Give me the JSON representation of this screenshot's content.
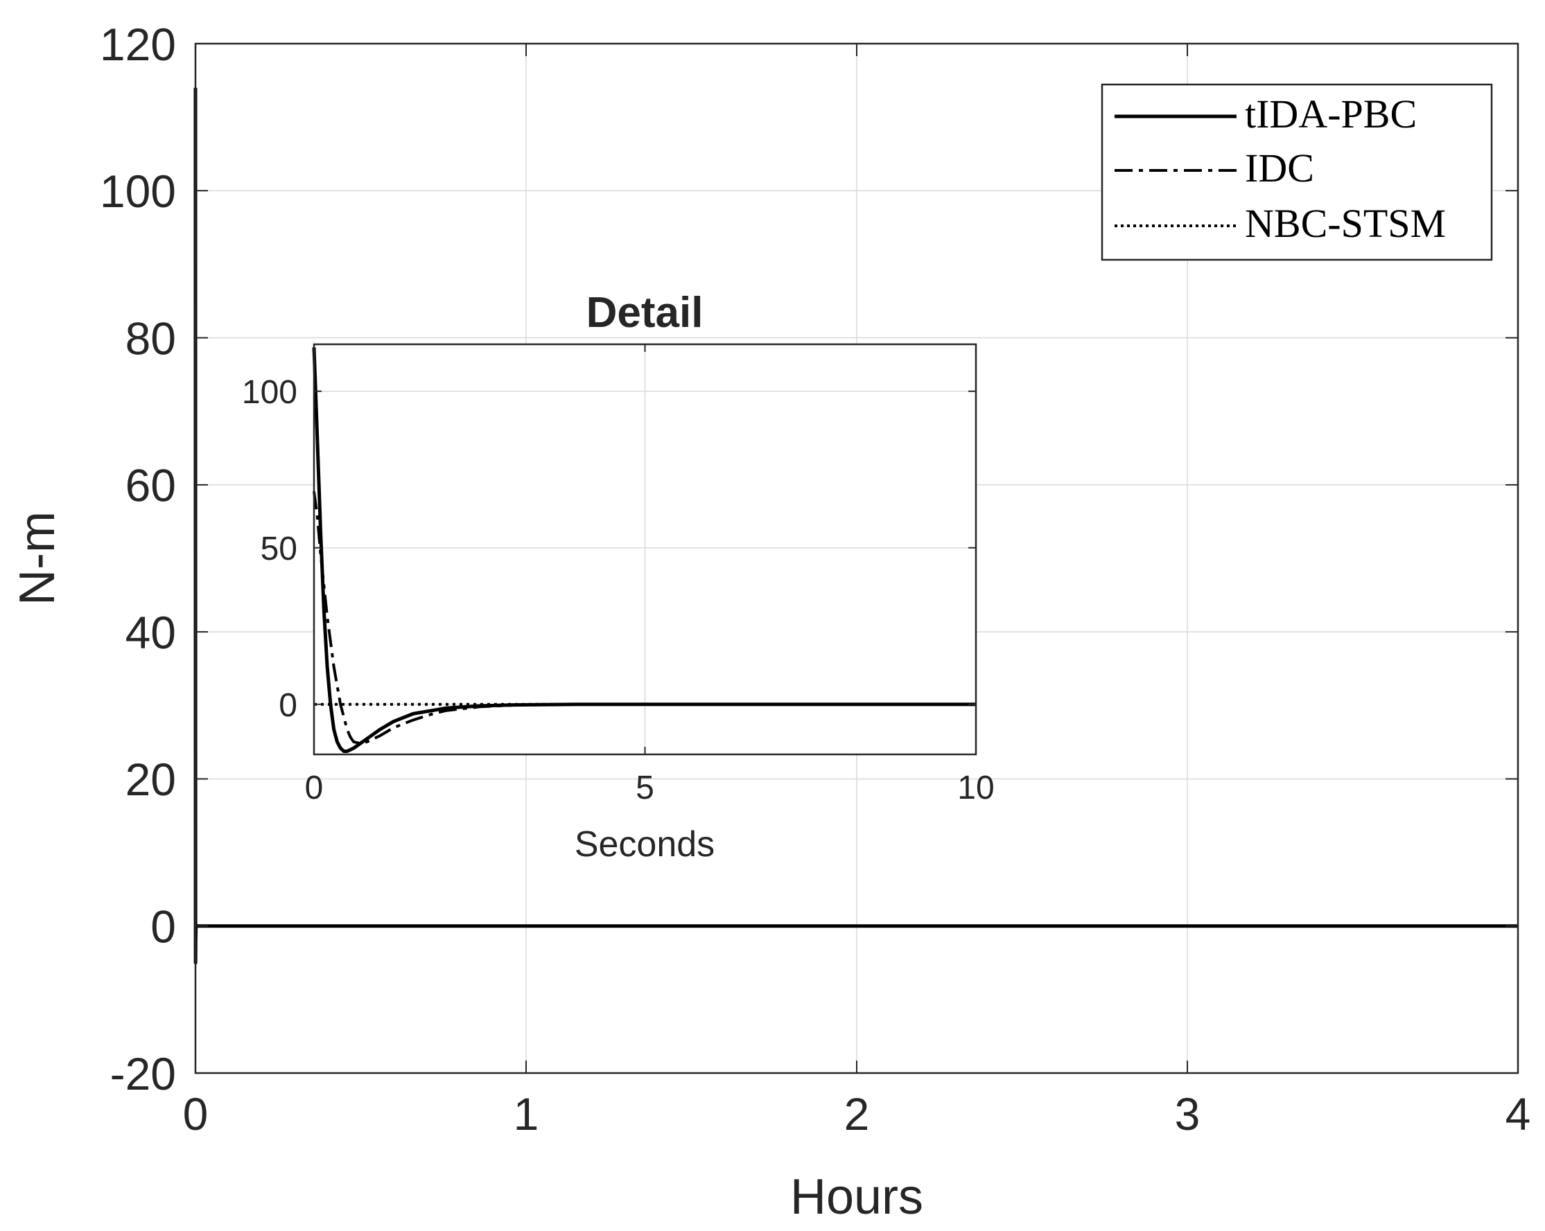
{
  "chart_data": [
    {
      "type": "line",
      "title": "",
      "xlabel": "Hours",
      "ylabel": "N-m",
      "xlim": [
        0,
        4
      ],
      "ylim": [
        -20,
        120
      ],
      "xticks": [
        "0",
        "1",
        "2",
        "3",
        "4"
      ],
      "yticks": [
        "-20",
        "0",
        "20",
        "40",
        "60",
        "80",
        "100",
        "120"
      ],
      "grid": true,
      "legend_position": "top-right",
      "series": [
        {
          "name": "tIDA-PBC",
          "style": "solid",
          "x": [
            0,
            0.0001,
            0.0003,
            0.0007,
            0.0014,
            0.004,
            4
          ],
          "y": [
            114,
            35,
            -5,
            -2,
            0,
            0,
            0
          ]
        },
        {
          "name": "IDC",
          "style": "dash-dot",
          "x": [
            0,
            0.0001,
            0.0003,
            0.0007,
            0.0014,
            0.004,
            4
          ],
          "y": [
            68,
            28,
            -3,
            -2,
            0,
            0,
            0
          ]
        },
        {
          "name": "NBC-STSM",
          "style": "dotted",
          "x": [
            0,
            4
          ],
          "y": [
            0,
            0
          ]
        }
      ]
    },
    {
      "type": "line",
      "title": "Detail",
      "xlabel": "Seconds",
      "ylabel": "",
      "xlim": [
        0,
        10
      ],
      "ylim": [
        -16,
        115
      ],
      "xticks": [
        "0",
        "5",
        "10"
      ],
      "yticks": [
        "0",
        "50",
        "100"
      ],
      "grid": true,
      "series": [
        {
          "name": "tIDA-PBC",
          "style": "solid",
          "x": [
            0,
            0.05,
            0.1,
            0.15,
            0.2,
            0.25,
            0.3,
            0.35,
            0.4,
            0.45,
            0.5,
            0.55,
            0.6,
            0.7,
            0.8,
            0.9,
            1.0,
            1.2,
            1.5,
            2.0,
            2.5,
            3.0,
            4.0,
            6.0,
            8.0,
            10.0
          ],
          "y": [
            114,
            85,
            55,
            30,
            12,
            0,
            -8,
            -12,
            -14,
            -15,
            -15,
            -14.5,
            -14,
            -12.5,
            -11,
            -9.5,
            -8,
            -5.5,
            -3,
            -1.2,
            -0.5,
            -0.2,
            0,
            0,
            0,
            0
          ]
        },
        {
          "name": "IDC",
          "style": "dash-dot",
          "x": [
            0,
            0.05,
            0.1,
            0.2,
            0.3,
            0.4,
            0.5,
            0.55,
            0.6,
            0.7,
            0.8,
            0.9,
            1.0,
            1.2,
            1.5,
            1.8,
            2.0,
            2.5,
            3.0,
            4.0,
            6.0,
            8.0,
            10.0
          ],
          "y": [
            68,
            60,
            48,
            28,
            12,
            0,
            -8,
            -10.5,
            -12,
            -12.5,
            -12,
            -11,
            -10,
            -7.5,
            -5,
            -3,
            -2,
            -0.8,
            -0.3,
            0,
            0,
            0,
            0
          ]
        },
        {
          "name": "NBC-STSM",
          "style": "dotted",
          "x": [
            0,
            10
          ],
          "y": [
            0,
            0
          ]
        }
      ]
    }
  ],
  "icons": {
    "legend_solid": "solid-line",
    "legend_dashdot": "dash-dot-line",
    "legend_dotted": "dotted-line"
  }
}
